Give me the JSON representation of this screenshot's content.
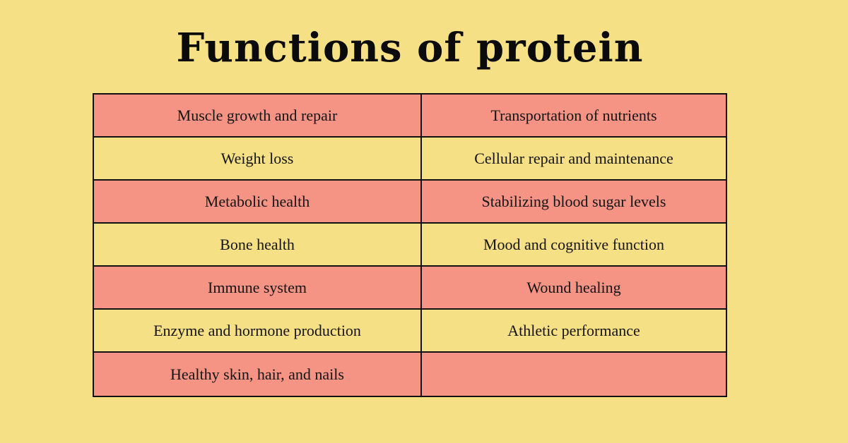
{
  "title": "Functions of protein",
  "colors": {
    "background": "#F6E086",
    "row_highlight": "#F59485",
    "border": "#111111",
    "text": "#141414"
  },
  "table": {
    "rows": [
      {
        "left": "Muscle growth and repair",
        "right": "Transportation of nutrients",
        "shade": "pink"
      },
      {
        "left": "Weight loss",
        "right": "Cellular repair and maintenance",
        "shade": "yellow"
      },
      {
        "left": "Metabolic health",
        "right": "Stabilizing blood sugar levels",
        "shade": "pink"
      },
      {
        "left": "Bone health",
        "right": "Mood and cognitive function",
        "shade": "yellow"
      },
      {
        "left": "Immune system",
        "right": "Wound healing",
        "shade": "pink"
      },
      {
        "left": "Enzyme and hormone production",
        "right": "Athletic performance",
        "shade": "yellow"
      },
      {
        "left": "Healthy skin, hair, and nails",
        "right": "",
        "shade": "pink"
      }
    ]
  }
}
